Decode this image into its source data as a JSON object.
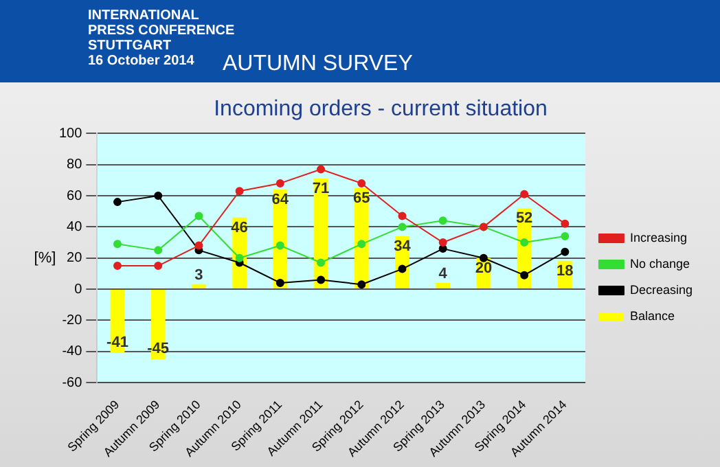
{
  "chart_data": {
    "type": "bar",
    "title": "Incoming orders - current situation",
    "subtitle": "AUTUMN SURVEY",
    "annotations": [
      "INTERNATIONAL",
      "PRESS CONFERENCE",
      "STUTTGART",
      "16 October 2014"
    ],
    "ylabel": "[%]",
    "categories": [
      "Spring 2009",
      "Autumn 2009",
      "Spring 2010",
      "Autumn 2010",
      "Spring 2011",
      "Autumn 2011",
      "Spring 2012",
      "Autumn 2012",
      "Spring 2013",
      "Autumn 2013",
      "Spring 2014",
      "Autumn 2014"
    ],
    "series": [
      {
        "name": "Balance",
        "type": "bar",
        "color": "#ffff00",
        "values": [
          -41,
          -45,
          3,
          46,
          64,
          71,
          65,
          34,
          4,
          20,
          52,
          18
        ],
        "value_labels": [
          "-41",
          "-45",
          "3",
          "46",
          "64",
          "71",
          "65",
          "34",
          "4",
          "20",
          "52",
          "18"
        ]
      },
      {
        "name": "Increasing",
        "type": "line",
        "color": "#e02020",
        "values": [
          15,
          15,
          28,
          63,
          68,
          77,
          68,
          47,
          30,
          40,
          61,
          42
        ]
      },
      {
        "name": "No change",
        "type": "line",
        "color": "#33dd33",
        "values": [
          29,
          25,
          47,
          20,
          28,
          17,
          29,
          40,
          44,
          40,
          30,
          34
        ]
      },
      {
        "name": "Decreasing",
        "type": "line",
        "color": "#000000",
        "values": [
          56,
          60,
          25,
          17,
          4,
          6,
          3,
          13,
          26,
          20,
          9,
          24
        ]
      }
    ],
    "ylim": [
      -60,
      100
    ],
    "yticks": [
      -60,
      -40,
      -20,
      0,
      20,
      40,
      60,
      80,
      100
    ],
    "grid": "y",
    "legend": "right",
    "marker": "circle"
  }
}
